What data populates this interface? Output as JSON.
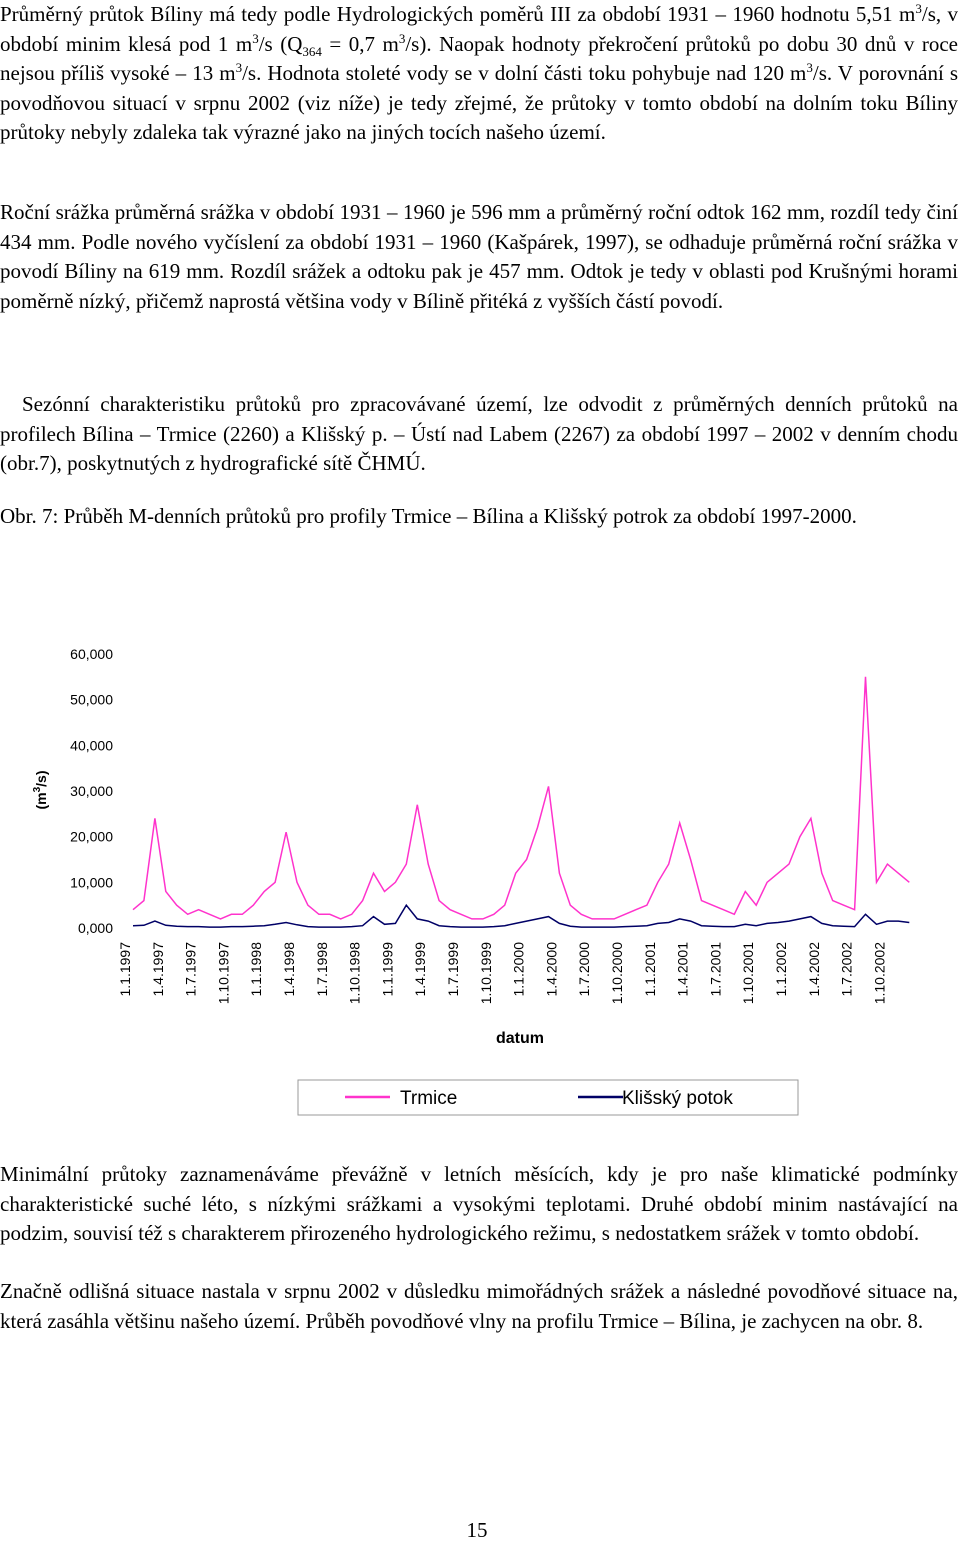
{
  "paragraphs_top": [
    {
      "runs": [
        {
          "text": "Průměrný průtok Bíliny má tedy podle Hydrologických poměrů III za období 1931 – 1960 hodnotu 5,51 m"
        },
        {
          "sup": "3"
        },
        {
          "text": "/s, v období minim klesá pod 1 m"
        },
        {
          "sup": "3"
        },
        {
          "text": "/s (Q"
        },
        {
          "sub": "364"
        },
        {
          "text": " = 0,7 m"
        },
        {
          "sup": "3"
        },
        {
          "text": "/s). Naopak hodnoty překročení průtoků po dobu 30 dnů v roce nejsou příliš vysoké – 13 m"
        },
        {
          "sup": "3"
        },
        {
          "text": "/s. Hodnota stoleté vody se v dolní části toku pohybuje nad 120 m"
        },
        {
          "sup": "3"
        },
        {
          "text": "/s. V porovnání s povodňovou situací v srpnu 2002 (viz níže) je tedy zřejmé, že průtoky v tomto období na dolním toku Bíliny průtoky nebyly zdaleka tak výrazné jako na jiných tocích našeho území."
        }
      ]
    },
    "Roční srážka průměrná srážka v období 1931 – 1960 je 596 mm a průměrný roční odtok 162 mm, rozdíl tedy činí 434 mm. Podle nového vyčíslení za období 1931 – 1960 (Kašpárek, 1997), se odhaduje průměrná roční srážka v povodí Bíliny na 619 mm. Rozdíl srážek a odtoku pak je 457 mm. Odtok je tedy v oblasti pod Krušnými horami poměrně nízký, přičemž naprostá většina vody v Bílině přitéká z vyšších částí povodí.",
    "Sezónní charakteristiku průtoků pro zpracovávané území, lze odvodit z průměrných denních průtoků na profilech Bílina – Trmice (2260) a Klišský p. – Ústí nad Labem (2267) za období 1997 – 2002 v denním chodu (obr.7), poskytnutých z hydrografické sítě ČHMÚ.",
    "Obr. 7: Průběh M-denních průtoků pro profily Trmice – Bílina a Klišský potrok za období 1997-2000."
  ],
  "chart_data": {
    "type": "line",
    "y_label": {
      "prefix": "(m",
      "sup": "3",
      "suffix": "/s)"
    },
    "x_label": "datum",
    "x": [
      "1.1.1997",
      "1.2.1997",
      "1.3.1997",
      "1.4.1997",
      "1.5.1997",
      "1.6.1997",
      "1.7.1997",
      "1.8.1997",
      "1.9.1997",
      "1.10.1997",
      "1.11.1997",
      "1.12.1997",
      "1.1.1998",
      "1.2.1998",
      "1.3.1998",
      "1.4.1998",
      "1.5.1998",
      "1.6.1998",
      "1.7.1998",
      "1.8.1998",
      "1.9.1998",
      "1.10.1998",
      "1.11.1998",
      "1.12.1998",
      "1.1.1999",
      "1.2.1999",
      "1.3.1999",
      "1.4.1999",
      "1.5.1999",
      "1.6.1999",
      "1.7.1999",
      "1.8.1999",
      "1.9.1999",
      "1.10.1999",
      "1.11.1999",
      "1.12.1999",
      "1.1.2000",
      "1.2.2000",
      "1.3.2000",
      "1.4.2000",
      "1.5.2000",
      "1.6.2000",
      "1.7.2000",
      "1.8.2000",
      "1.9.2000",
      "1.10.2000",
      "1.11.2000",
      "1.12.2000",
      "1.1.2001",
      "1.2.2001",
      "1.3.2001",
      "1.4.2001",
      "1.5.2001",
      "1.6.2001",
      "1.7.2001",
      "1.8.2001",
      "1.9.2001",
      "1.10.2001",
      "1.11.2001",
      "1.12.2001",
      "1.1.2002",
      "1.2.2002",
      "1.3.2002",
      "1.4.2002",
      "1.5.2002",
      "1.6.2002",
      "1.7.2002",
      "1.8.2002",
      "1.9.2002",
      "1.10.2002",
      "1.11.2002",
      "1.12.2002"
    ],
    "xticks": [
      "1.1.1997",
      "1.4.1997",
      "1.7.1997",
      "1.10.1997",
      "1.1.1998",
      "1.4.1998",
      "1.7.1998",
      "1.10.1998",
      "1.1.1999",
      "1.4.1999",
      "1.7.1999",
      "1.10.1999",
      "1.1.2000",
      "1.4.2000",
      "1.7.2000",
      "1.10.2000",
      "1.1.2001",
      "1.4.2001",
      "1.7.2001",
      "1.10.2001",
      "1.1.2002",
      "1.4.2002",
      "1.7.2002",
      "1.10.2002"
    ],
    "ylim": [
      0,
      60
    ],
    "yticks": [
      {
        "value": 0,
        "label": "0,000"
      },
      {
        "value": 10,
        "label": "10,000"
      },
      {
        "value": 20,
        "label": "20,000"
      },
      {
        "value": 30,
        "label": "30,000"
      },
      {
        "value": 40,
        "label": "40,000"
      },
      {
        "value": 50,
        "label": "50,000"
      },
      {
        "value": 60,
        "label": "60,000"
      }
    ],
    "series": [
      {
        "name": "Trmice",
        "color": "#ff33cc",
        "values": [
          4,
          6,
          24,
          8,
          5,
          3,
          4,
          3,
          2,
          3,
          3,
          5,
          8,
          10,
          21,
          10,
          5,
          3,
          3,
          2,
          3,
          6,
          12,
          8,
          10,
          14,
          27,
          14,
          6,
          4,
          3,
          2,
          2,
          3,
          5,
          12,
          15,
          22,
          31,
          12,
          5,
          3,
          2,
          2,
          2,
          3,
          4,
          5,
          10,
          14,
          23,
          15,
          6,
          5,
          4,
          3,
          8,
          5,
          10,
          12,
          14,
          20,
          24,
          12,
          6,
          5,
          4,
          55,
          10,
          14,
          12,
          10
        ]
      },
      {
        "name": "Klišský potok",
        "color": "#000066",
        "values": [
          0.5,
          0.6,
          1.5,
          0.6,
          0.4,
          0.3,
          0.3,
          0.2,
          0.2,
          0.3,
          0.3,
          0.4,
          0.5,
          0.8,
          1.2,
          0.7,
          0.3,
          0.2,
          0.2,
          0.2,
          0.3,
          0.5,
          2.5,
          0.8,
          1,
          5,
          2,
          1.5,
          0.5,
          0.3,
          0.2,
          0.2,
          0.2,
          0.3,
          0.5,
          1,
          1.5,
          2,
          2.5,
          1,
          0.4,
          0.2,
          0.2,
          0.2,
          0.2,
          0.3,
          0.4,
          0.5,
          1,
          1.2,
          2,
          1.5,
          0.5,
          0.4,
          0.3,
          0.3,
          0.8,
          0.5,
          1,
          1.2,
          1.5,
          2,
          2.5,
          1,
          0.5,
          0.4,
          0.3,
          3,
          0.8,
          1.5,
          1.5,
          1.2
        ]
      }
    ]
  },
  "paragraphs_bottom": [
    "Minimální průtoky zaznamenáváme převážně v letních měsících, kdy je pro naše klimatické podmínky charakteristické  suché léto, s nízkými srážkami a vysokými teplotami. Druhé období minim nastávající na podzim, souvisí též s charakterem přirozeného hydrologického režimu, s nedostatkem srážek v tomto období.",
    "Značně odlišná situace nastala v srpnu 2002 v důsledku mimořádných srážek a následné povodňové situace na, která zasáhla většinu našeho území. Průběh povodňové vlny na profilu Trmice – Bílina, je zachycen na obr. 8."
  ],
  "page_number": "15"
}
